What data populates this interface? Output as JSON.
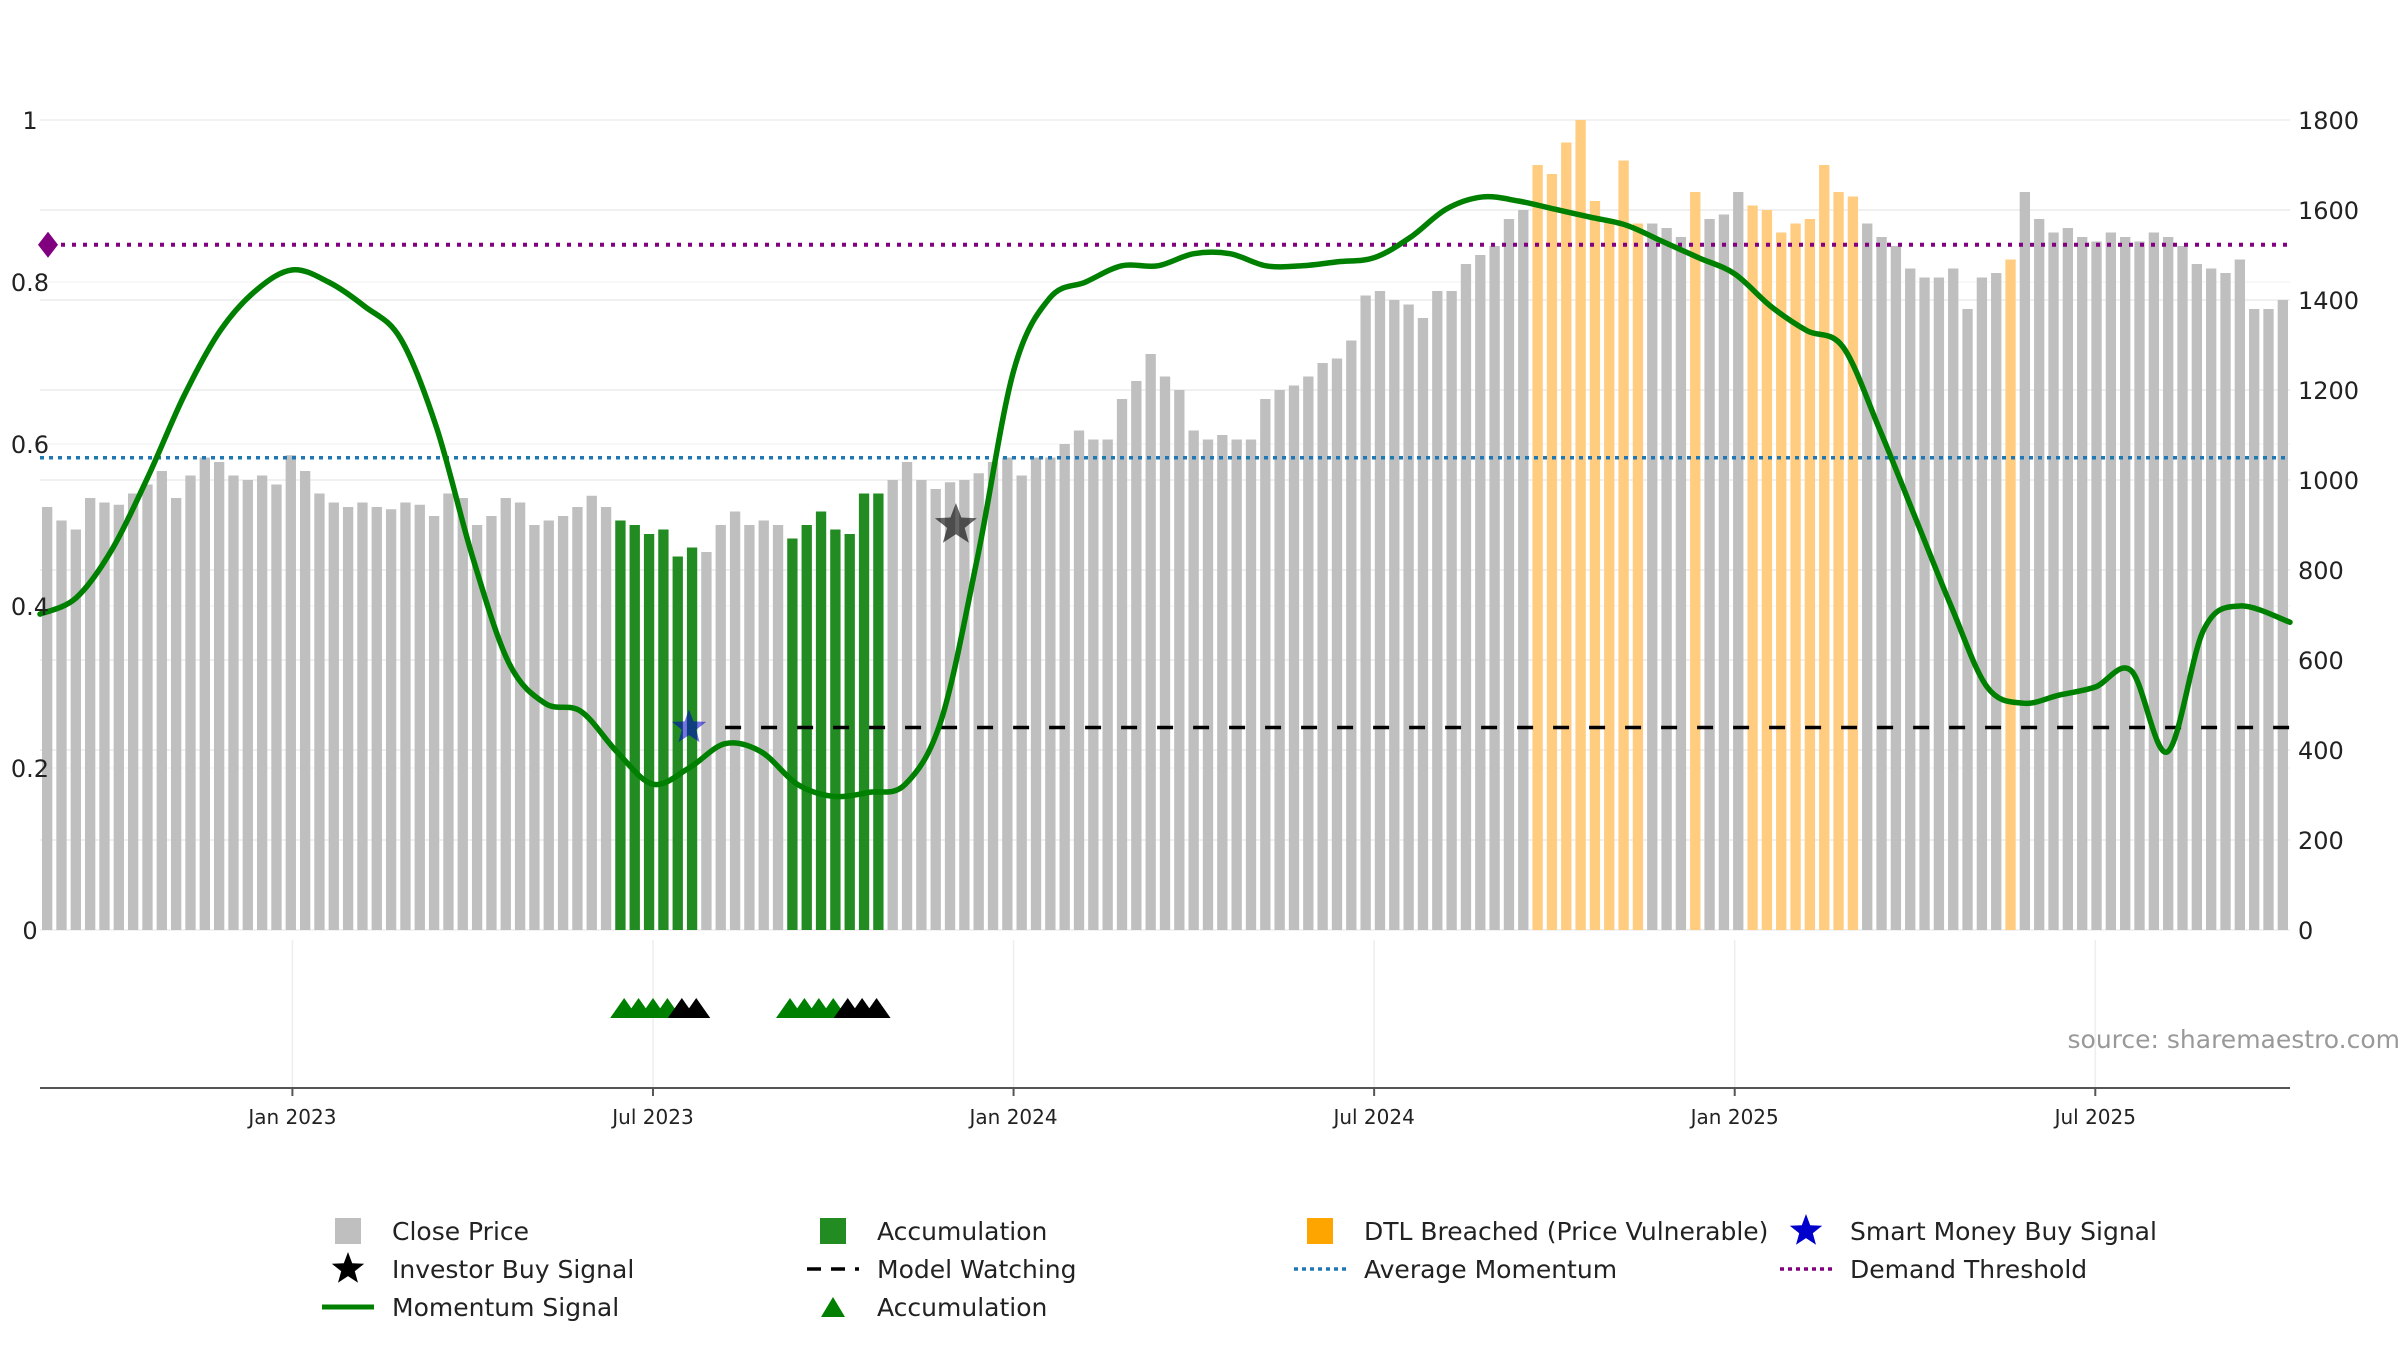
{
  "chart_data": {
    "type": "bar",
    "title": "",
    "source": "source: sharemaestro.com",
    "y_left": {
      "ticks": [
        0,
        0.2,
        0.4,
        0.6,
        0.8,
        1
      ],
      "labels": [
        "0",
        "0.2",
        "0.4",
        "0.6",
        "0.8",
        "1"
      ],
      "range": [
        0,
        1.0
      ]
    },
    "y_right": {
      "ticks": [
        0,
        200,
        400,
        600,
        800,
        1000,
        1200,
        1400,
        1600,
        1800
      ],
      "labels": [
        "0",
        "200",
        "400",
        "600",
        "800",
        "1000",
        "1200",
        "1400",
        "1600",
        "1800"
      ],
      "range": [
        0,
        1800
      ]
    },
    "x_axis": {
      "start_month": 2022.65,
      "end_month": 2025.77,
      "ticks": [
        {
          "label": "Jan 2023",
          "t": 2023.0
        },
        {
          "label": "Jul 2023",
          "t": 2023.5
        },
        {
          "label": "Jan 2024",
          "t": 2024.0
        },
        {
          "label": "Jul 2024",
          "t": 2024.5
        },
        {
          "label": "Jan 2025",
          "t": 2025.0
        },
        {
          "label": "Jul 2025",
          "t": 2025.5
        }
      ]
    },
    "close_price": [
      940,
      910,
      890,
      960,
      950,
      945,
      970,
      990,
      1020,
      960,
      1010,
      1050,
      1040,
      1010,
      1000,
      1010,
      990,
      1055,
      1020,
      970,
      950,
      940,
      950,
      940,
      935,
      950,
      945,
      920,
      970,
      960,
      900,
      920,
      960,
      950,
      900,
      910,
      920,
      940,
      965,
      940,
      910,
      900,
      880,
      890,
      830,
      850,
      840,
      900,
      930,
      900,
      910,
      900,
      870,
      900,
      930,
      890,
      880,
      970,
      970,
      1000,
      1040,
      1000,
      980,
      995,
      1000,
      1015,
      1040,
      1050,
      1010,
      1050,
      1050,
      1080,
      1110,
      1090,
      1090,
      1180,
      1220,
      1280,
      1230,
      1200,
      1110,
      1090,
      1100,
      1090,
      1090,
      1180,
      1200,
      1210,
      1230,
      1260,
      1270,
      1310,
      1410,
      1420,
      1400,
      1390,
      1360,
      1420,
      1420,
      1480,
      1500,
      1520,
      1580,
      1600,
      1700,
      1680,
      1750,
      1800,
      1620,
      1580,
      1710,
      1570,
      1570,
      1560,
      1540,
      1640,
      1580,
      1590,
      1640,
      1610,
      1600,
      1550,
      1570,
      1580,
      1700,
      1640,
      1630,
      1570,
      1540,
      1520,
      1470,
      1450,
      1450,
      1470,
      1380,
      1450,
      1460,
      1490,
      1640,
      1580,
      1550,
      1560,
      1540,
      1530,
      1550,
      1540,
      1530,
      1550,
      1540,
      1520,
      1480,
      1470,
      1460,
      1490,
      1380,
      1380,
      1400
    ],
    "bar_states": {
      "accumulation": [
        [
          40,
          45
        ],
        [
          52,
          58
        ]
      ],
      "dtl_breached": [
        [
          104,
          111
        ],
        [
          115,
          115
        ],
        [
          119,
          126
        ],
        [
          137,
          137
        ]
      ]
    },
    "momentum": [
      [
        2022.65,
        0.39
      ],
      [
        2022.7,
        0.41
      ],
      [
        2022.75,
        0.47
      ],
      [
        2022.8,
        0.56
      ],
      [
        2022.85,
        0.66
      ],
      [
        2022.9,
        0.74
      ],
      [
        2022.95,
        0.79
      ],
      [
        2023.0,
        0.815
      ],
      [
        2023.05,
        0.8
      ],
      [
        2023.1,
        0.77
      ],
      [
        2023.15,
        0.73
      ],
      [
        2023.2,
        0.62
      ],
      [
        2023.25,
        0.46
      ],
      [
        2023.3,
        0.33
      ],
      [
        2023.35,
        0.28
      ],
      [
        2023.4,
        0.27
      ],
      [
        2023.45,
        0.22
      ],
      [
        2023.5,
        0.18
      ],
      [
        2023.55,
        0.2
      ],
      [
        2023.6,
        0.23
      ],
      [
        2023.65,
        0.22
      ],
      [
        2023.7,
        0.18
      ],
      [
        2023.75,
        0.165
      ],
      [
        2023.8,
        0.17
      ],
      [
        2023.85,
        0.18
      ],
      [
        2023.9,
        0.26
      ],
      [
        2023.95,
        0.46
      ],
      [
        2024.0,
        0.69
      ],
      [
        2024.05,
        0.78
      ],
      [
        2024.1,
        0.8
      ],
      [
        2024.15,
        0.82
      ],
      [
        2024.2,
        0.82
      ],
      [
        2024.25,
        0.835
      ],
      [
        2024.3,
        0.835
      ],
      [
        2024.35,
        0.82
      ],
      [
        2024.4,
        0.82
      ],
      [
        2024.45,
        0.825
      ],
      [
        2024.5,
        0.83
      ],
      [
        2024.55,
        0.855
      ],
      [
        2024.6,
        0.89
      ],
      [
        2024.65,
        0.905
      ],
      [
        2024.7,
        0.9
      ],
      [
        2024.75,
        0.89
      ],
      [
        2024.8,
        0.88
      ],
      [
        2024.85,
        0.87
      ],
      [
        2024.9,
        0.85
      ],
      [
        2024.95,
        0.83
      ],
      [
        2025.0,
        0.81
      ],
      [
        2025.05,
        0.77
      ],
      [
        2025.1,
        0.74
      ],
      [
        2025.15,
        0.72
      ],
      [
        2025.2,
        0.62
      ],
      [
        2025.25,
        0.51
      ],
      [
        2025.3,
        0.4
      ],
      [
        2025.35,
        0.3
      ],
      [
        2025.4,
        0.28
      ],
      [
        2025.45,
        0.29
      ],
      [
        2025.5,
        0.3
      ],
      [
        2025.55,
        0.32
      ],
      [
        2025.6,
        0.22
      ],
      [
        2025.65,
        0.37
      ],
      [
        2025.7,
        0.4
      ],
      [
        2025.77,
        0.38
      ]
    ],
    "average_momentum": 0.583,
    "demand_threshold": 0.846,
    "model_watching": {
      "value": 0.25,
      "from": 2023.6,
      "to": 2025.77
    },
    "investor_buy_signal": {
      "t": 2023.92,
      "value": 0.5
    },
    "smart_money_buy_signal": {
      "t": 2023.55,
      "value": 0.25
    },
    "accumulation_markers": {
      "green": [
        2023.46,
        2023.48,
        2023.5,
        2023.52,
        2023.69,
        2023.71,
        2023.73,
        2023.75
      ],
      "black": [
        2023.54,
        2023.56,
        2023.77,
        2023.79,
        2023.81
      ]
    },
    "colors": {
      "close_price": "#bfbfbf",
      "accumulation": "#228b22",
      "dtl_breached": "#ffcc80",
      "momentum": "#008000",
      "average_momentum": "#1f77b4",
      "demand_threshold": "#800080",
      "model_watching": "#000000",
      "investor_star": "#000000",
      "smart_money_star": "#0000cc"
    },
    "legend": [
      {
        "label": "Close Price",
        "kind": "square",
        "color": "#bfbfbf"
      },
      {
        "label": "Accumulation",
        "kind": "square",
        "color": "#228b22"
      },
      {
        "label": "DTL Breached (Price Vulnerable)",
        "kind": "square",
        "color": "#ffa500"
      },
      {
        "label": "Smart Money Buy Signal",
        "kind": "star",
        "color": "#0000cc"
      },
      {
        "label": "Investor Buy Signal",
        "kind": "star",
        "color": "#000000"
      },
      {
        "label": "Model Watching",
        "kind": "dash",
        "color": "#000000"
      },
      {
        "label": "Average Momentum",
        "kind": "dot",
        "color": "#1f77b4"
      },
      {
        "label": "Demand Threshold",
        "kind": "dot",
        "color": "#800080"
      },
      {
        "label": "Momentum Signal",
        "kind": "line",
        "color": "#008000"
      },
      {
        "label": "Accumulation",
        "kind": "triangle",
        "color": "#008000"
      }
    ]
  }
}
